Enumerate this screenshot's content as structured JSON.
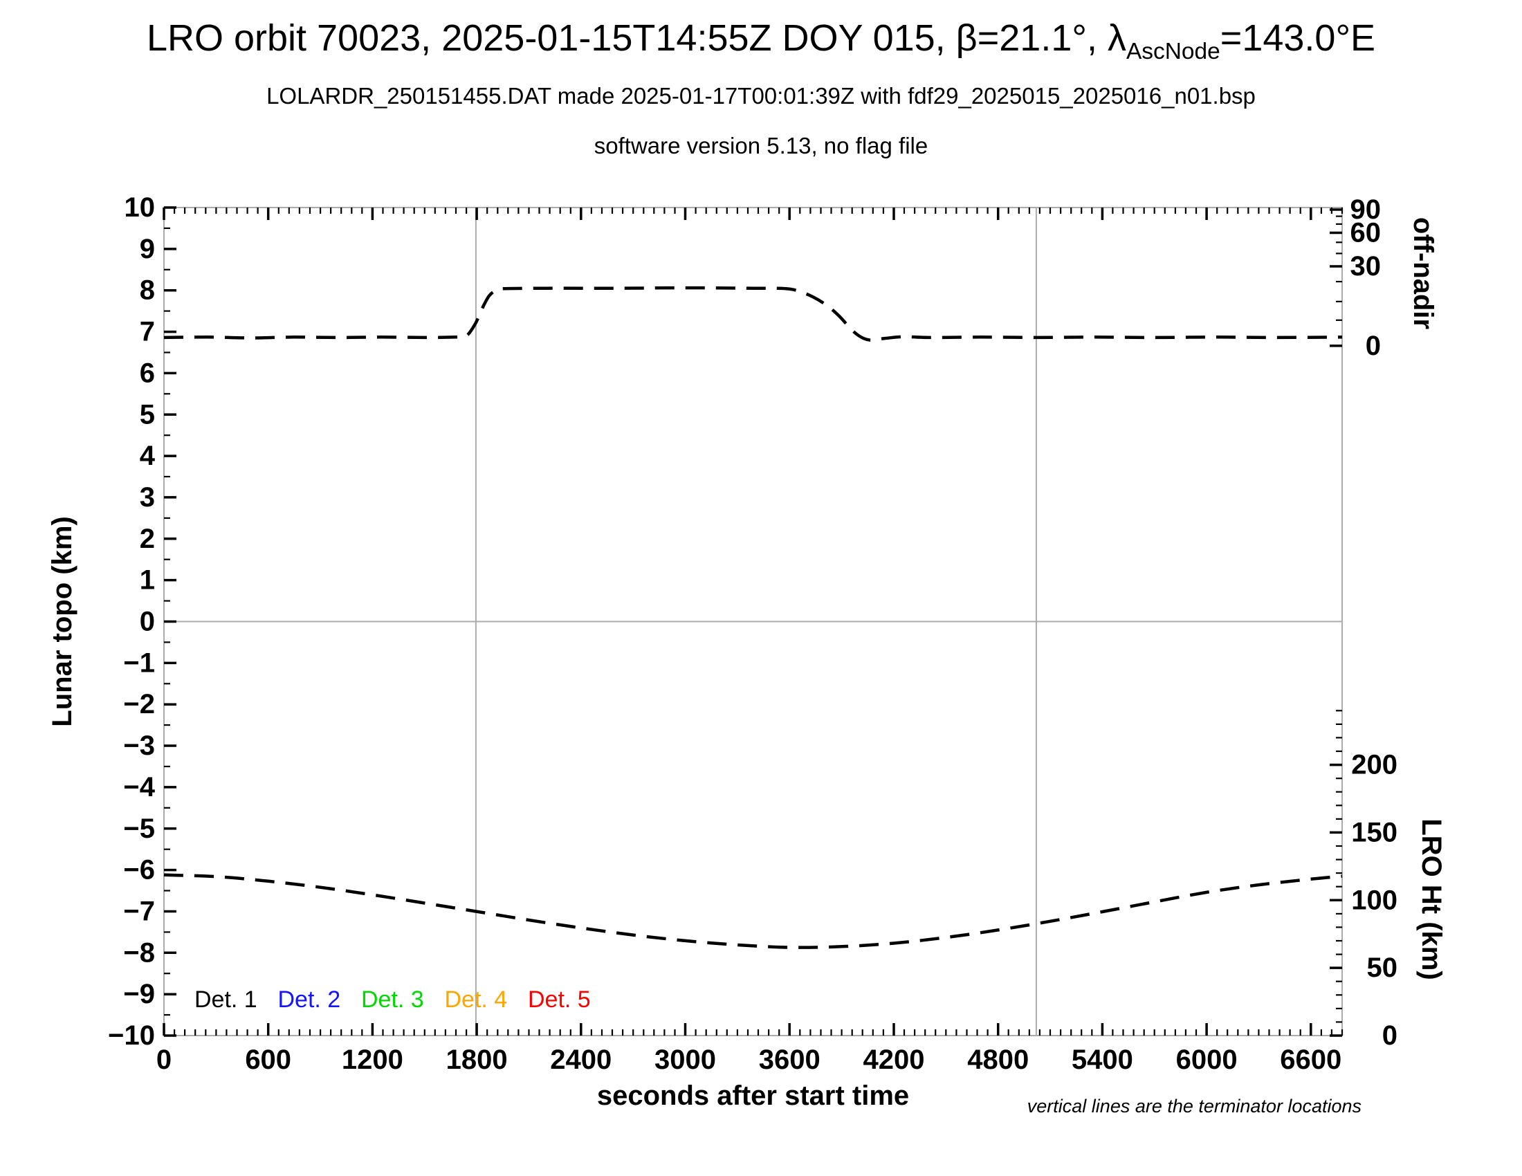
{
  "header": {
    "title_prefix": "LRO orbit 70023, 2025-01-15T14:55Z DOY 015, β=21.1°, λ",
    "title_subscript": "AscNode",
    "title_suffix": "=143.0°E",
    "subtitle_1": "LOLARDR_250151455.DAT made 2025-01-17T00:01:39Z with fdf29_2025015_2025016_n01.bsp",
    "subtitle_2": "software version 5.13, no flag file"
  },
  "footer_note": "vertical lines are the terminator locations",
  "chart_data": {
    "type": "line",
    "xlabel": "seconds after start time",
    "ylabel_left": "Lunar topo (km)",
    "ylabel_right_top": "off-nadir",
    "ylabel_right_bottom": "LRO Ht (km)",
    "x_range": [
      0,
      6780
    ],
    "y_left_range": [
      -10,
      10
    ],
    "x_major_ticks": [
      0,
      600,
      1200,
      1800,
      2400,
      3000,
      3600,
      4200,
      4800,
      5400,
      6000,
      6600
    ],
    "x_minor_step": 60,
    "y_left_tick_step": 1,
    "y_left_minor_step": 0.5,
    "off_nadir_major_ticks": [
      {
        "label": "90",
        "topo": 9.95
      },
      {
        "label": "60",
        "topo": 9.39
      },
      {
        "label": "30",
        "topo": 8.58
      },
      {
        "label": "0",
        "topo": 6.66
      }
    ],
    "off_nadir_minor_ticks_topo": [
      7.28,
      7.73,
      8.21,
      8.89,
      9.16,
      9.6,
      9.79
    ],
    "lro_ht_major_ticks": [
      {
        "label": "200",
        "km": 200
      },
      {
        "label": "150",
        "km": 150
      },
      {
        "label": "100",
        "km": 100
      },
      {
        "label": "50",
        "km": 50
      },
      {
        "label": "0",
        "km": 0
      }
    ],
    "lro_ht_minor_step_km": 10,
    "lro_ht_minor_max_km": 240,
    "lro_ht_topo_per_km": 0.0327,
    "terminator_seconds": [
      1795,
      5020
    ],
    "zero_line_topo": 0,
    "colors": {
      "line": "#000000",
      "grid": "#ababab",
      "frame": "#ababab"
    },
    "legend": [
      {
        "label": "Det. 1",
        "color": "#000000"
      },
      {
        "label": "Det. 2",
        "color": "#1414ff"
      },
      {
        "label": "Det. 3",
        "color": "#00d900"
      },
      {
        "label": "Det. 4",
        "color": "#ffa500"
      },
      {
        "label": "Det. 5",
        "color": "#ff0000"
      }
    ],
    "series": [
      {
        "name": "off-nadir-angle-curve",
        "style": "dashed",
        "points": [
          [
            0,
            6.86
          ],
          [
            250,
            6.87
          ],
          [
            500,
            6.85
          ],
          [
            750,
            6.87
          ],
          [
            1000,
            6.86
          ],
          [
            1250,
            6.87
          ],
          [
            1500,
            6.86
          ],
          [
            1680,
            6.87
          ],
          [
            1740,
            6.9
          ],
          [
            1790,
            7.18
          ],
          [
            1830,
            7.55
          ],
          [
            1870,
            7.86
          ],
          [
            1910,
            8.0
          ],
          [
            1950,
            8.04
          ],
          [
            2200,
            8.05
          ],
          [
            2600,
            8.05
          ],
          [
            3000,
            8.06
          ],
          [
            3400,
            8.05
          ],
          [
            3580,
            8.04
          ],
          [
            3660,
            7.97
          ],
          [
            3740,
            7.83
          ],
          [
            3820,
            7.62
          ],
          [
            3890,
            7.36
          ],
          [
            3950,
            7.08
          ],
          [
            4000,
            6.9
          ],
          [
            4060,
            6.8
          ],
          [
            4150,
            6.84
          ],
          [
            4260,
            6.88
          ],
          [
            4400,
            6.86
          ],
          [
            4700,
            6.87
          ],
          [
            5020,
            6.86
          ],
          [
            5350,
            6.87
          ],
          [
            5700,
            6.86
          ],
          [
            6050,
            6.87
          ],
          [
            6400,
            6.86
          ],
          [
            6780,
            6.87
          ]
        ]
      },
      {
        "name": "lro-height-curve",
        "style": "dashed",
        "points": [
          [
            0,
            -6.12
          ],
          [
            300,
            -6.16
          ],
          [
            600,
            -6.27
          ],
          [
            900,
            -6.42
          ],
          [
            1200,
            -6.6
          ],
          [
            1500,
            -6.8
          ],
          [
            1795,
            -7.0
          ],
          [
            2100,
            -7.21
          ],
          [
            2400,
            -7.4
          ],
          [
            2700,
            -7.57
          ],
          [
            3000,
            -7.71
          ],
          [
            3300,
            -7.81
          ],
          [
            3600,
            -7.87
          ],
          [
            3900,
            -7.85
          ],
          [
            4200,
            -7.77
          ],
          [
            4500,
            -7.63
          ],
          [
            4800,
            -7.45
          ],
          [
            5100,
            -7.24
          ],
          [
            5400,
            -7.01
          ],
          [
            5700,
            -6.77
          ],
          [
            6000,
            -6.54
          ],
          [
            6300,
            -6.36
          ],
          [
            6600,
            -6.22
          ],
          [
            6780,
            -6.15
          ]
        ]
      }
    ]
  }
}
